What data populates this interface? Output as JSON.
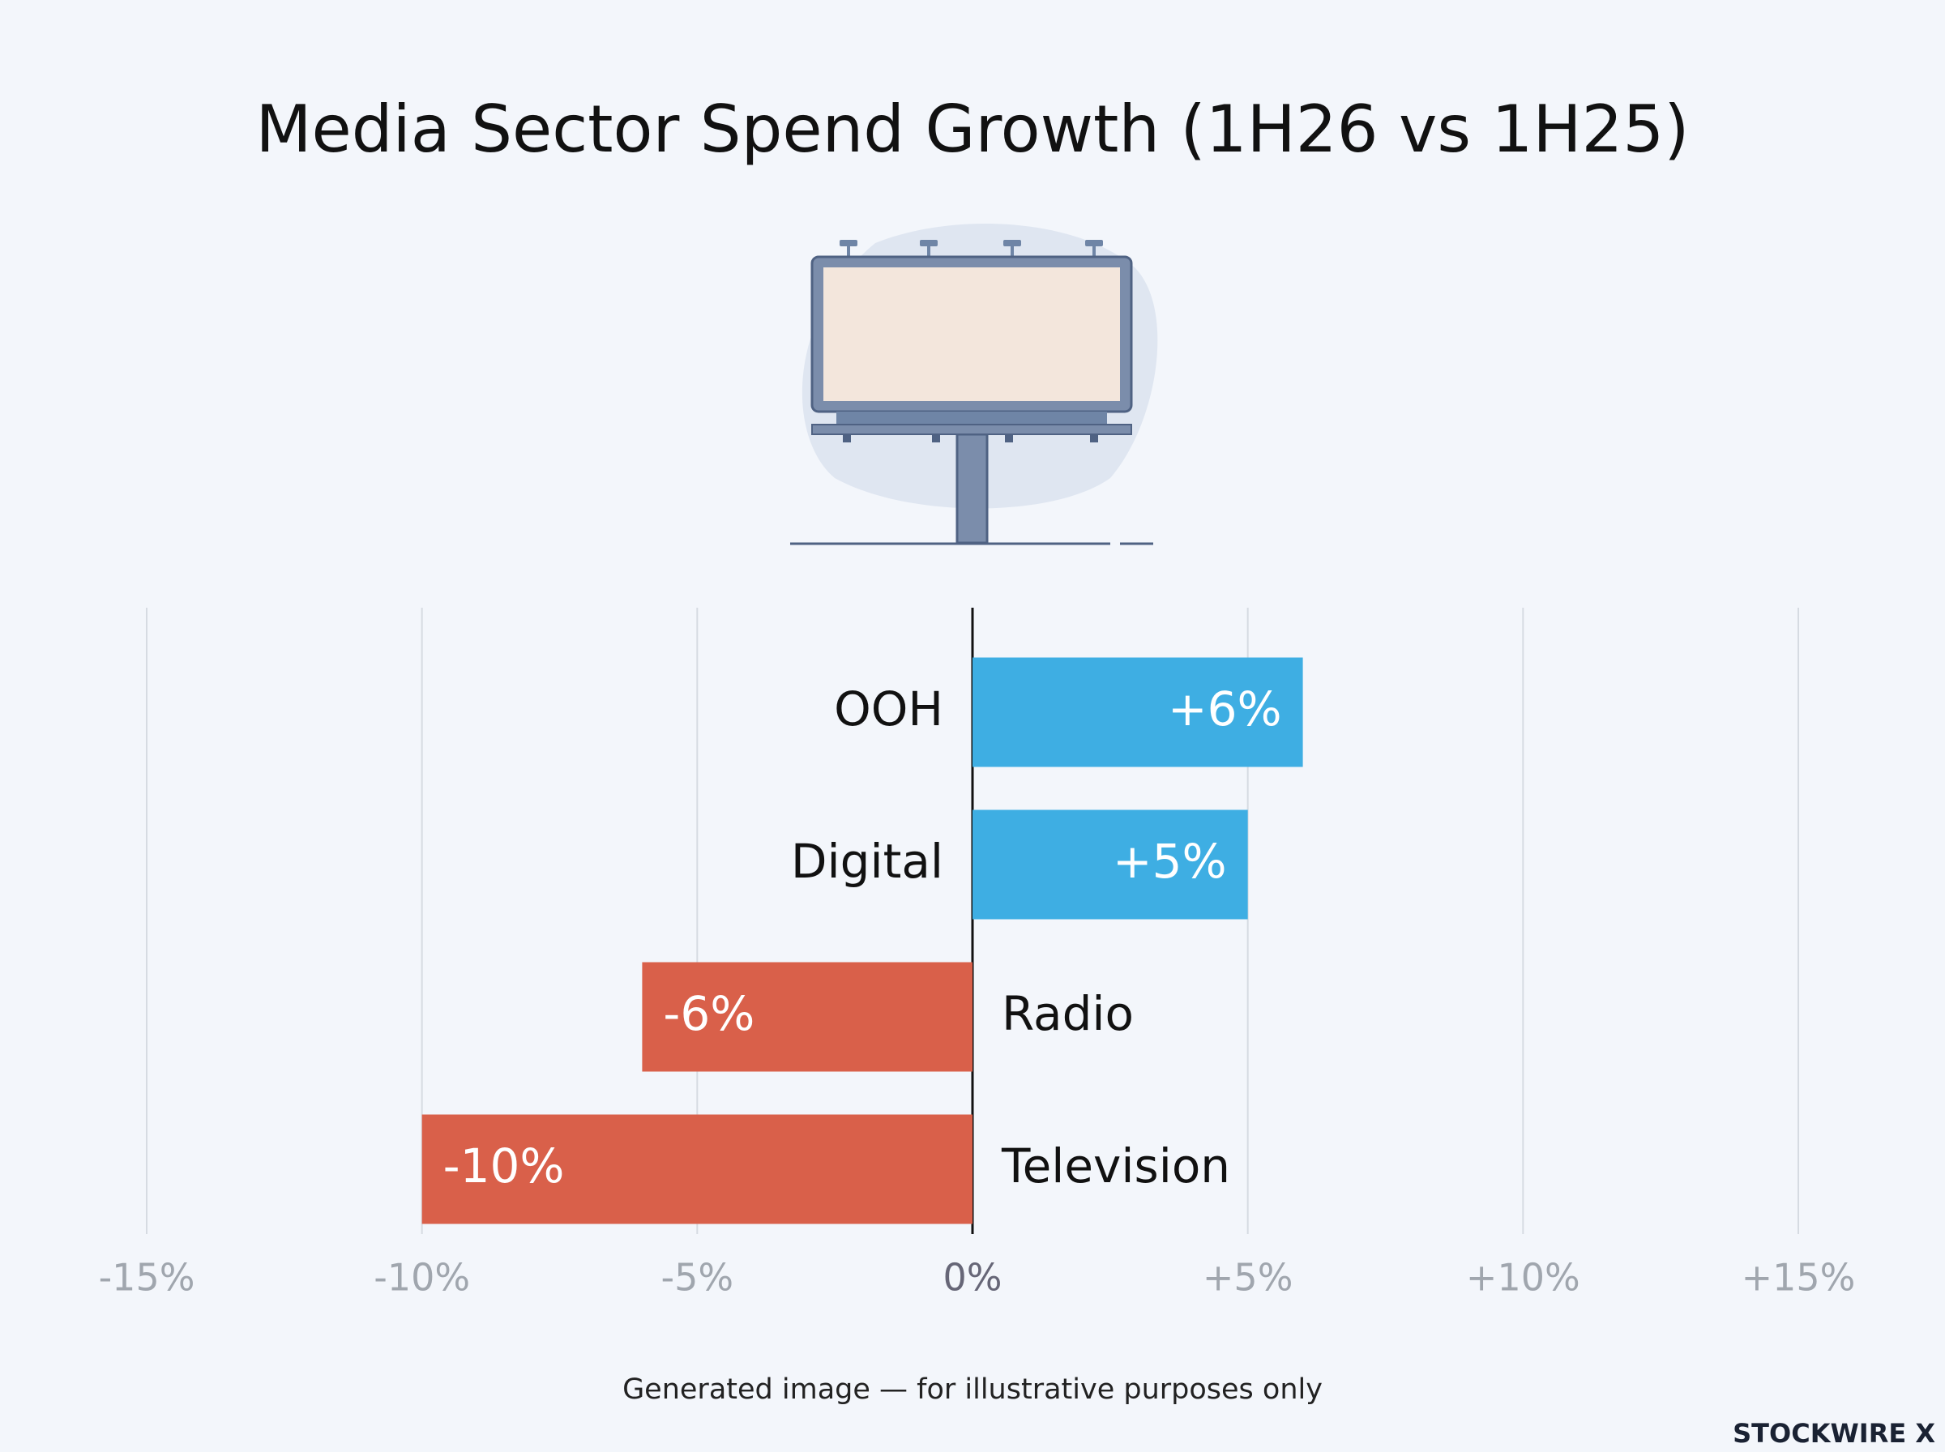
{
  "chart_data": {
    "type": "bar",
    "orientation": "horizontal",
    "title": "Media Sector Spend Growth (1H26 vs 1H25)",
    "categories": [
      "OOH",
      "Digital",
      "Radio",
      "Television"
    ],
    "values": [
      6,
      5,
      -6,
      -10
    ],
    "value_labels": [
      "+6%",
      "+5%",
      "-6%",
      "-10%"
    ],
    "positive_color": "#3eaee3",
    "negative_color": "#d9604a",
    "xlim": [
      -15,
      15
    ],
    "xticks": [
      {
        "value": -15,
        "label": "-15%"
      },
      {
        "value": -10,
        "label": "-10%"
      },
      {
        "value": -5,
        "label": "-5%"
      },
      {
        "value": 0,
        "label": "0%"
      },
      {
        "value": 5,
        "label": "+5%"
      },
      {
        "value": 10,
        "label": "+10%"
      },
      {
        "value": 15,
        "label": "+15%"
      }
    ],
    "grid": true
  },
  "footnote": "Generated image — for illustrative purposes only",
  "brand": "STOCKWIRE X"
}
